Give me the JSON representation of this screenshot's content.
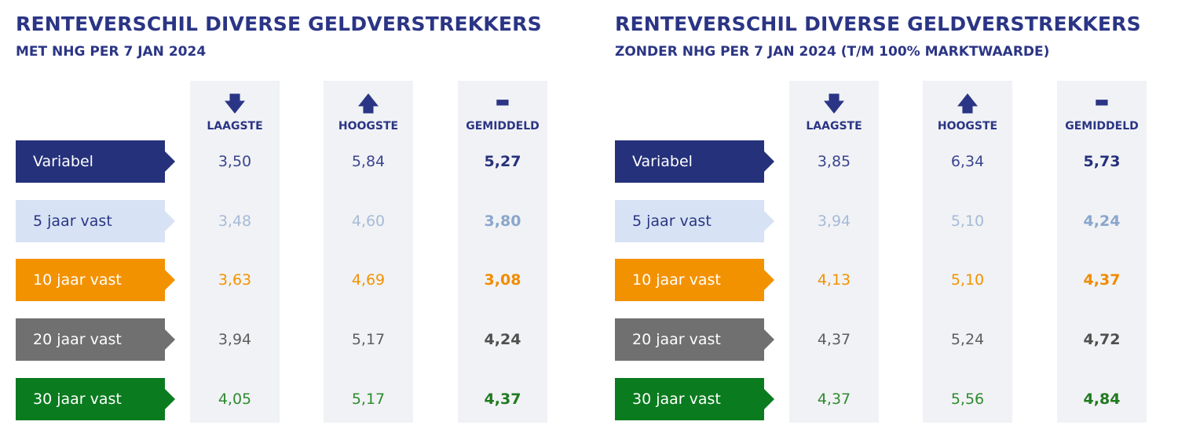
{
  "colors": {
    "title": "#2b3585",
    "row_colors": [
      "#25317b",
      "#d7e3f4",
      "#f39200",
      "#707070",
      "#0b7b1f"
    ],
    "row_label_text": [
      "#ffffff",
      "#2b3585",
      "#ffffff",
      "#ffffff",
      "#ffffff"
    ],
    "value_text": [
      "#3b4590",
      "#a6bbd8",
      "#f39200",
      "#5e5e5e",
      "#2e8b2e"
    ],
    "avg_text": [
      "#25317b",
      "#8aa6cc",
      "#f08c00",
      "#4f4f4f",
      "#1f7a1f"
    ]
  },
  "icons": {
    "laagste": "arrow-down-icon",
    "hoogste": "arrow-up-icon",
    "gemiddeld": "minus-icon"
  },
  "chart_data": [
    {
      "type": "table",
      "title": "RENTEVERSCHIL DIVERSE GELDVERSTREKKERS",
      "subtitle": "MET NHG PER 7 JAN 2024",
      "columns": [
        "LAAGSTE",
        "HOOGSTE",
        "GEMIDDELD"
      ],
      "rows": [
        {
          "label": "Variabel",
          "values": [
            "3,50",
            "5,84",
            "5,27"
          ]
        },
        {
          "label": "5 jaar vast",
          "values": [
            "3,48",
            "4,60",
            "3,80"
          ]
        },
        {
          "label": "10 jaar vast",
          "values": [
            "3,63",
            "4,69",
            "3,08"
          ]
        },
        {
          "label": "20 jaar vast",
          "values": [
            "3,94",
            "5,17",
            "4,24"
          ]
        },
        {
          "label": "30 jaar vast",
          "values": [
            "4,05",
            "5,17",
            "4,37"
          ]
        }
      ]
    },
    {
      "type": "table",
      "title": "RENTEVERSCHIL DIVERSE GELDVERSTREKKERS",
      "subtitle": "ZONDER NHG PER 7 JAN 2024 (T/M 100% MARKTWAARDE)",
      "columns": [
        "LAAGSTE",
        "HOOGSTE",
        "GEMIDDELD"
      ],
      "rows": [
        {
          "label": "Variabel",
          "values": [
            "3,85",
            "6,34",
            "5,73"
          ]
        },
        {
          "label": "5 jaar vast",
          "values": [
            "3,94",
            "5,10",
            "4,24"
          ]
        },
        {
          "label": "10 jaar vast",
          "values": [
            "4,13",
            "5,10",
            "4,37"
          ]
        },
        {
          "label": "20 jaar vast",
          "values": [
            "4,37",
            "5,24",
            "4,72"
          ]
        },
        {
          "label": "30 jaar vast",
          "values": [
            "4,37",
            "5,56",
            "4,84"
          ]
        }
      ]
    }
  ]
}
